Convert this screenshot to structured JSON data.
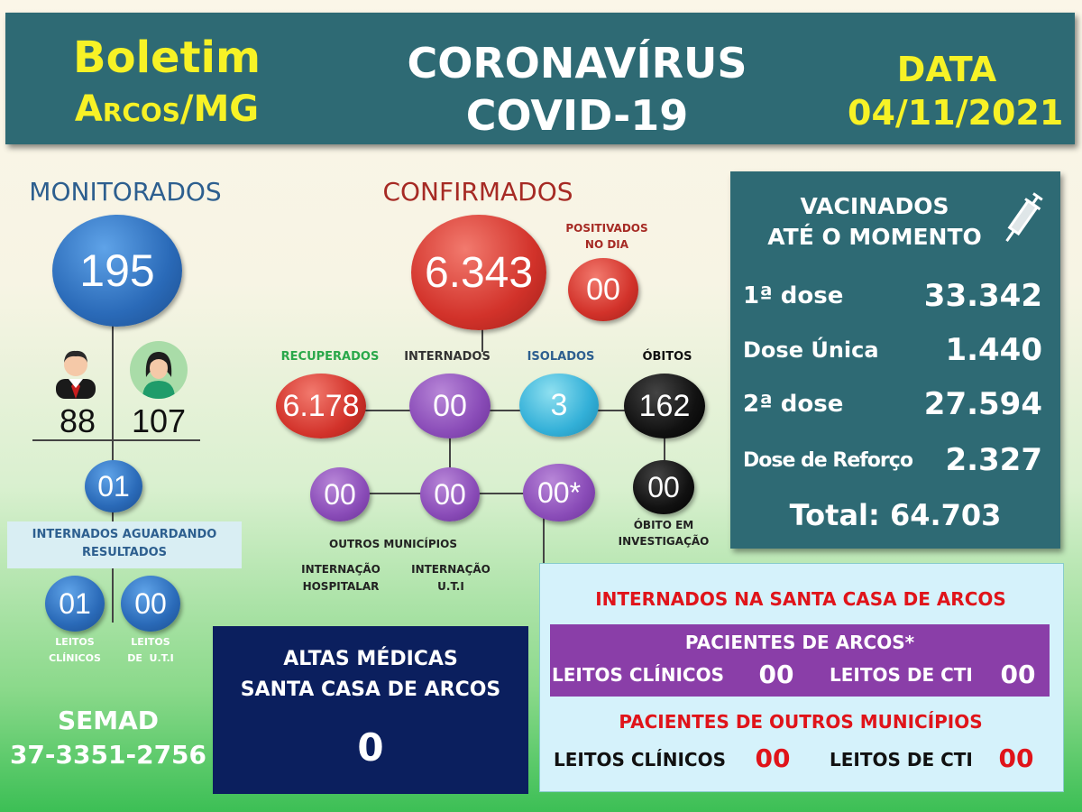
{
  "header": {
    "left_line1": "Boletim",
    "left_line2": "Arcos/MG",
    "center_line1": "CORONAVÍRUS",
    "center_line2": "COVID-19",
    "right_line1": "DATA",
    "right_line2": "04/11/2021"
  },
  "monitorados": {
    "title": "MONITORADOS",
    "total": "195",
    "male": "88",
    "female": "107",
    "aguardando": "01",
    "aguardando_label": "INTERNADOS AGUARDANDO RESULTADOS",
    "leitos_clinicos": "01",
    "leitos_clinicos_label_1": "LEITOS",
    "leitos_clinicos_label_2": "CLÍNICOS",
    "leitos_uti": "00",
    "leitos_uti_label_1": "LEITOS",
    "leitos_uti_label_2": "DE  U.T.I"
  },
  "confirmados": {
    "title": "CONFIRMADOS",
    "total": "6.343",
    "positivados_label_1": "POSITIVADOS",
    "positivados_label_2": "NO DIA",
    "positivados": "00",
    "recuperados_label": "RECUPERADOS",
    "recuperados": "6.178",
    "internados_label": "INTERNADOS",
    "internados": "00",
    "isolados_label": "ISOLADOS",
    "isolados": "3",
    "obitos_label": "ÓBITOS",
    "obitos": "162",
    "obito_investigacao": "00",
    "obito_investigacao_label_1": "ÓBITO EM",
    "obito_investigacao_label_2": "INVESTIGAÇÃO",
    "outros_municipios": "00",
    "internacao_hospitalar": "00",
    "internacao_uti": "00*",
    "outros_municipios_label": "OUTROS MUNICÍPIOS",
    "internacao_hospitalar_label_1": "INTERNAÇÃO",
    "internacao_hospitalar_label_2": "HOSPITALAR",
    "internacao_uti_label_1": "INTERNAÇÃO",
    "internacao_uti_label_2": "U.T.I"
  },
  "vacinados": {
    "title_1": "VACINADOS",
    "title_2": "ATÉ O MOMENTO",
    "rows": [
      {
        "label": "1ª dose",
        "value": "33.342"
      },
      {
        "label": "Dose Única",
        "value": "1.440"
      },
      {
        "label": "2ª dose",
        "value": "27.594"
      },
      {
        "label": "Dose de Reforço",
        "value": "2.327"
      }
    ],
    "total": "Total: 64.703"
  },
  "santa_casa": {
    "title": "INTERNADOS NA SANTA CASA DE ARCOS",
    "arcos_title": "PACIENTES DE ARCOS*",
    "arcos_clinicos_label": "LEITOS CLÍNICOS",
    "arcos_clinicos": "00",
    "arcos_cti_label": "LEITOS DE CTI",
    "arcos_cti": "00",
    "outros_title": "PACIENTES DE OUTROS MUNICÍPIOS",
    "outros_clinicos_label": "LEITOS CLÍNICOS",
    "outros_clinicos": "00",
    "outros_cti_label": "LEITOS DE CTI",
    "outros_cti": "00"
  },
  "altas": {
    "title_1": "ALTAS MÉDICAS",
    "title_2": "SANTA CASA DE ARCOS",
    "value": "0"
  },
  "semad": {
    "name": "SEMAD",
    "phone": "37-3351-2756"
  },
  "colors": {
    "header_bg": "#2e6a74",
    "yellow": "#f7f226",
    "red_title": "#a62a24",
    "blue_title": "#2d5f8f",
    "green_label": "#2aa84a",
    "santa_red": "#e0141a"
  }
}
